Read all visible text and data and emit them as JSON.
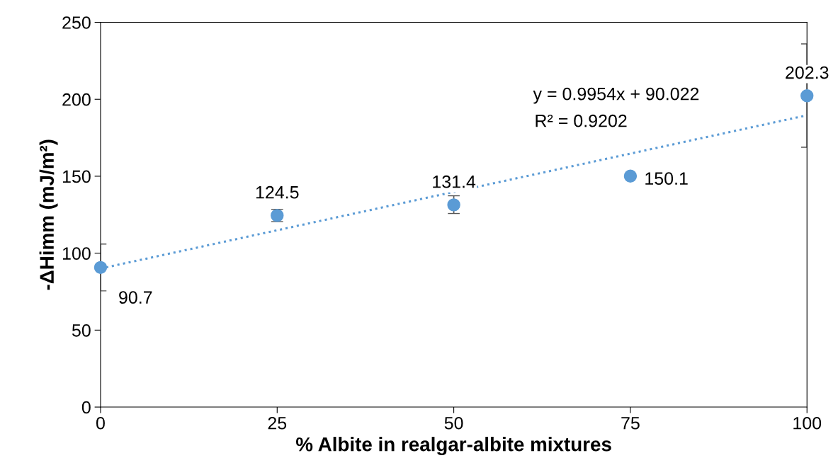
{
  "chart_data": {
    "type": "scatter",
    "xlabel": "% Albite in realgar-albite mixtures",
    "ylabel": "-ΔHimm (mJ/m²)",
    "xlim": [
      0,
      100
    ],
    "xticks": [
      0,
      25,
      50,
      75,
      100
    ],
    "ylim": [
      0,
      250
    ],
    "yticks": [
      0,
      50,
      100,
      150,
      200,
      250
    ],
    "grid": false,
    "legend": false,
    "series": [
      {
        "color": "#5b9bd5",
        "x": [
          0,
          25,
          50,
          75,
          100
        ],
        "values": [
          90.7,
          124.5,
          131.4,
          150.1,
          202.3
        ],
        "errors": [
          15.2,
          4,
          [
            125.8,
            137.3
          ],
          null,
          [
            168.8,
            236
          ]
        ],
        "value_labels": [
          "90.7",
          "124.5",
          "131.4",
          "150.1",
          "202.3"
        ],
        "marker": "circle"
      },
      {
        "type": "line",
        "color": "#5b9bd5",
        "x": [
          0,
          100
        ],
        "values": [
          90.0,
          189.6
        ],
        "line_style": "dotted",
        "marker": "none"
      }
    ],
    "annotations": [
      "y = 0.9954x + 90.022",
      "R² = 0.9202"
    ]
  }
}
